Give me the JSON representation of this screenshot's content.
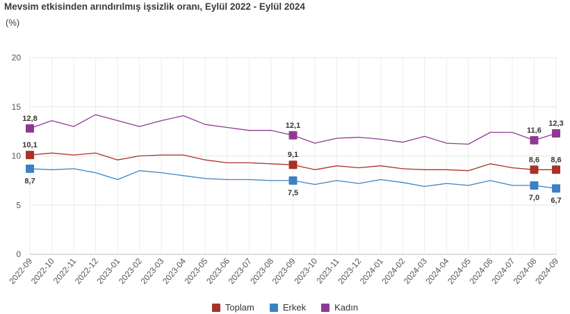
{
  "title": "Mevsim etkisinden arındırılmış işsizlik oranı, Eylül 2022 - Eylül 2024",
  "unit": "(%)",
  "chart_data": {
    "type": "line",
    "title": "Mevsim etkisinden arındırılmış işsizlik oranı, Eylül 2022 - Eylül 2024",
    "ylabel": "(%)",
    "ylim": [
      0,
      20
    ],
    "yticks": [
      0,
      5,
      10,
      15,
      20
    ],
    "grid": true,
    "legend_position": "bottom-center",
    "x": [
      "2022-09",
      "2022-10",
      "2022-11",
      "2022-12",
      "2023-01",
      "2023-02",
      "2023-03",
      "2023-04",
      "2023-05",
      "2023-06",
      "2023-07",
      "2023-08",
      "2023-09",
      "2023-10",
      "2023-11",
      "2023-12",
      "2024-01",
      "2024-02",
      "2024-03",
      "2024-04",
      "2024-05",
      "2024-06",
      "2024-07",
      "2024-08",
      "2024-09"
    ],
    "series": [
      {
        "name": "Toplam",
        "color": "#a93226",
        "values": [
          10.1,
          10.3,
          10.1,
          10.3,
          9.6,
          10.0,
          10.1,
          10.1,
          9.6,
          9.3,
          9.3,
          9.2,
          9.1,
          8.6,
          9.0,
          8.8,
          9.0,
          8.7,
          8.6,
          8.6,
          8.5,
          9.2,
          8.8,
          8.6,
          8.6
        ],
        "labels": [
          {
            "index": 0,
            "text": "10,1",
            "pos": "above"
          },
          {
            "index": 12,
            "text": "9,1",
            "pos": "above"
          },
          {
            "index": 23,
            "text": "8,6",
            "pos": "above"
          },
          {
            "index": 24,
            "text": "8,6",
            "pos": "above"
          }
        ]
      },
      {
        "name": "Erkek",
        "color": "#3a82c4",
        "values": [
          8.7,
          8.6,
          8.7,
          8.3,
          7.6,
          8.5,
          8.3,
          8.0,
          7.7,
          7.6,
          7.6,
          7.5,
          7.5,
          7.1,
          7.5,
          7.2,
          7.6,
          7.3,
          6.9,
          7.2,
          7.0,
          7.5,
          7.0,
          7.0,
          6.7
        ],
        "labels": [
          {
            "index": 0,
            "text": "8,7",
            "pos": "below"
          },
          {
            "index": 12,
            "text": "7,5",
            "pos": "below"
          },
          {
            "index": 23,
            "text": "7,0",
            "pos": "below"
          },
          {
            "index": 24,
            "text": "6,7",
            "pos": "below"
          }
        ]
      },
      {
        "name": "Kadın",
        "color": "#8e3a94",
        "values": [
          12.8,
          13.6,
          13.0,
          14.2,
          13.6,
          13.0,
          13.6,
          14.1,
          13.2,
          12.9,
          12.6,
          12.6,
          12.1,
          11.3,
          11.8,
          11.9,
          11.7,
          11.4,
          12.0,
          11.3,
          11.2,
          12.4,
          12.4,
          11.6,
          12.3
        ],
        "labels": [
          {
            "index": 0,
            "text": "12,8",
            "pos": "above"
          },
          {
            "index": 12,
            "text": "12,1",
            "pos": "above"
          },
          {
            "index": 23,
            "text": "11,6",
            "pos": "above"
          },
          {
            "index": 24,
            "text": "12,3",
            "pos": "above"
          }
        ]
      }
    ]
  }
}
